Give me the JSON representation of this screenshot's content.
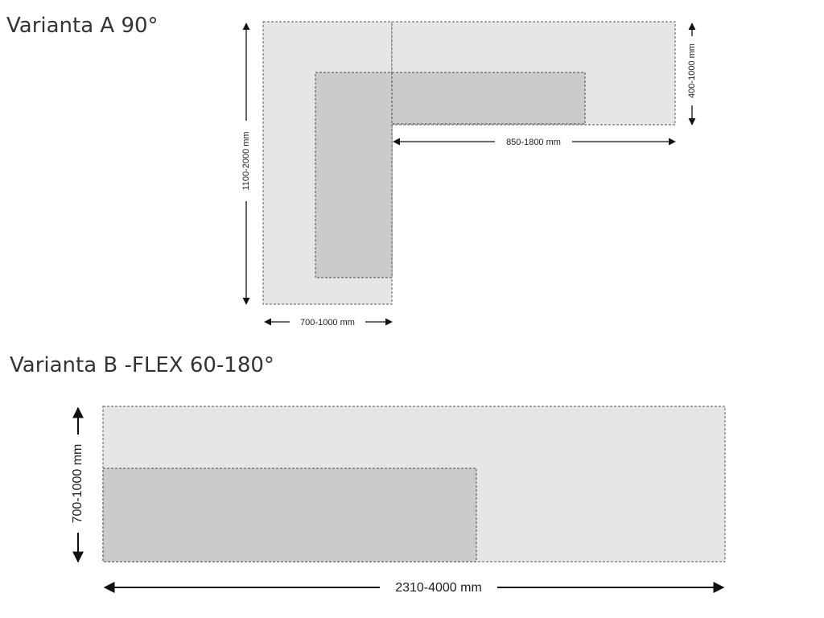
{
  "variant_a": {
    "title": "Varianta A 90°",
    "height_label": "1100-2000 mm",
    "depth_label": "400-1000 mm",
    "length_label": "850-1800 mm",
    "width_label": "700-1000 mm"
  },
  "variant_b": {
    "title": "Varianta B -FLEX 60-180°",
    "depth_label": "700-1000 mm",
    "length_label": "2310-4000 mm"
  }
}
